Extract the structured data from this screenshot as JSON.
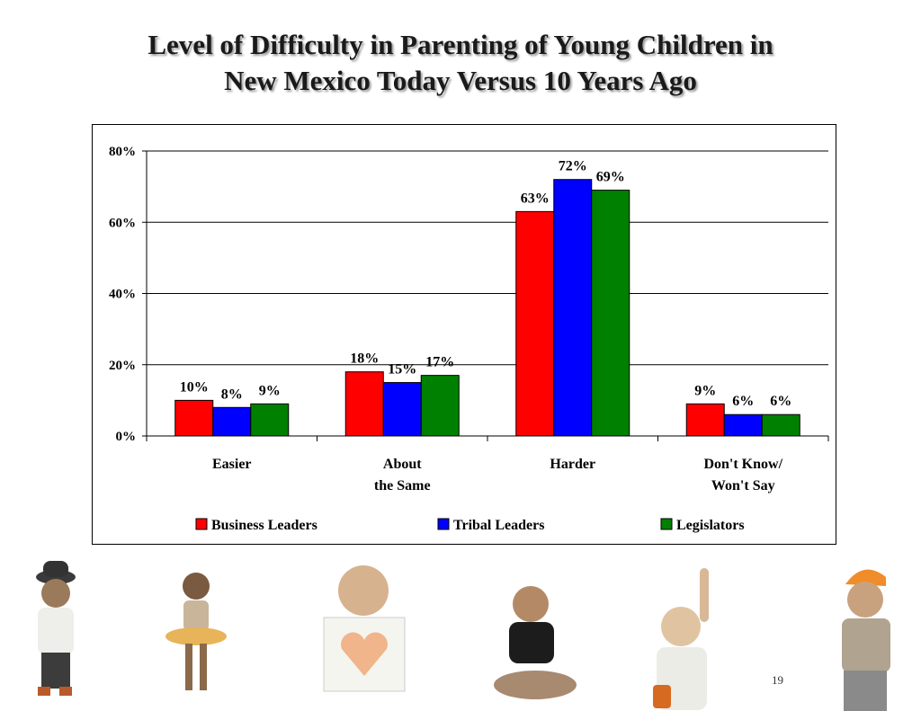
{
  "slide": {
    "title_lines": [
      "Level of Difficulty in Parenting of Young Children in",
      "New Mexico Today Versus 10 Years Ago"
    ],
    "page_number": "19"
  },
  "chart_data": {
    "type": "bar",
    "categories": [
      [
        "Easier"
      ],
      [
        "About",
        "the Same"
      ],
      [
        "Harder"
      ],
      [
        "Don't Know/",
        "Won't Say"
      ]
    ],
    "series": [
      {
        "name": "Business Leaders",
        "color": "#ff0000",
        "values": [
          10,
          18,
          63,
          9
        ],
        "labels": [
          "10%",
          "18%",
          "63%",
          "9%"
        ]
      },
      {
        "name": "Tribal Leaders",
        "color": "#0000ff",
        "values": [
          8,
          15,
          72,
          6
        ],
        "labels": [
          "8%",
          "15%",
          "72%",
          "6%"
        ]
      },
      {
        "name": "Legislators",
        "color": "#008000",
        "values": [
          9,
          17,
          69,
          6
        ],
        "labels": [
          "9%",
          "17%",
          "69%",
          "6%"
        ]
      }
    ],
    "ylim": [
      0,
      80
    ],
    "yticks": [
      0,
      20,
      40,
      60,
      80
    ],
    "ytick_labels": [
      "0%",
      "20%",
      "40%",
      "60%",
      "80%"
    ],
    "grid": true,
    "legend_position": "bottom",
    "xlabel": "",
    "ylabel": ""
  },
  "photos": [
    {
      "name": "child-bowler-hat"
    },
    {
      "name": "child-flower-skirt"
    },
    {
      "name": "child-heart-drawing"
    },
    {
      "name": "child-sitting"
    },
    {
      "name": "child-arm-raised"
    },
    {
      "name": "child-orange-cap"
    }
  ]
}
